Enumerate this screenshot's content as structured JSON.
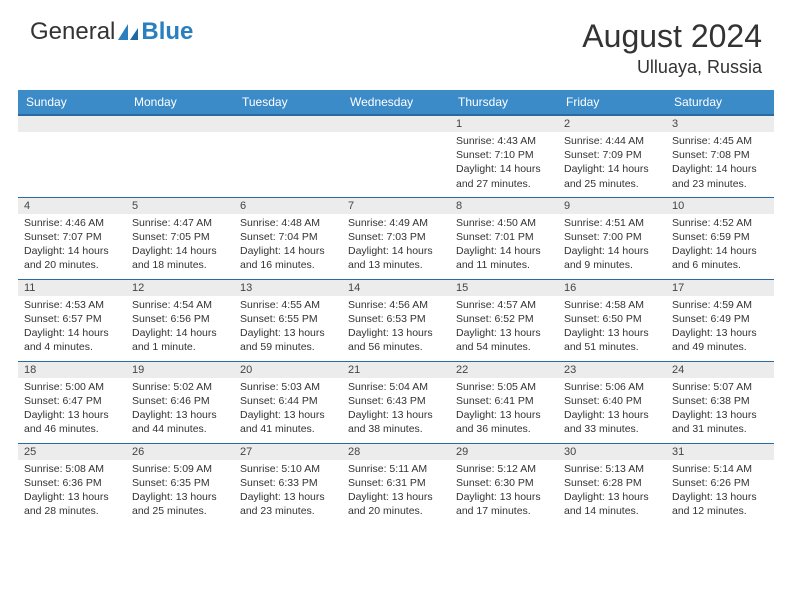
{
  "brand": {
    "part1": "General",
    "part2": "Blue"
  },
  "title": "August 2024",
  "location": "Ulluaya, Russia",
  "header_bg": "#3b8bc9",
  "header_text": "#ffffff",
  "border_color": "#2a6aa0",
  "daynum_bg": "#ececec",
  "weekdays": [
    "Sunday",
    "Monday",
    "Tuesday",
    "Wednesday",
    "Thursday",
    "Friday",
    "Saturday"
  ],
  "weeks": [
    [
      null,
      null,
      null,
      null,
      {
        "n": "1",
        "sr": "Sunrise: 4:43 AM",
        "ss": "Sunset: 7:10 PM",
        "dl": "Daylight: 14 hours and 27 minutes."
      },
      {
        "n": "2",
        "sr": "Sunrise: 4:44 AM",
        "ss": "Sunset: 7:09 PM",
        "dl": "Daylight: 14 hours and 25 minutes."
      },
      {
        "n": "3",
        "sr": "Sunrise: 4:45 AM",
        "ss": "Sunset: 7:08 PM",
        "dl": "Daylight: 14 hours and 23 minutes."
      }
    ],
    [
      {
        "n": "4",
        "sr": "Sunrise: 4:46 AM",
        "ss": "Sunset: 7:07 PM",
        "dl": "Daylight: 14 hours and 20 minutes."
      },
      {
        "n": "5",
        "sr": "Sunrise: 4:47 AM",
        "ss": "Sunset: 7:05 PM",
        "dl": "Daylight: 14 hours and 18 minutes."
      },
      {
        "n": "6",
        "sr": "Sunrise: 4:48 AM",
        "ss": "Sunset: 7:04 PM",
        "dl": "Daylight: 14 hours and 16 minutes."
      },
      {
        "n": "7",
        "sr": "Sunrise: 4:49 AM",
        "ss": "Sunset: 7:03 PM",
        "dl": "Daylight: 14 hours and 13 minutes."
      },
      {
        "n": "8",
        "sr": "Sunrise: 4:50 AM",
        "ss": "Sunset: 7:01 PM",
        "dl": "Daylight: 14 hours and 11 minutes."
      },
      {
        "n": "9",
        "sr": "Sunrise: 4:51 AM",
        "ss": "Sunset: 7:00 PM",
        "dl": "Daylight: 14 hours and 9 minutes."
      },
      {
        "n": "10",
        "sr": "Sunrise: 4:52 AM",
        "ss": "Sunset: 6:59 PM",
        "dl": "Daylight: 14 hours and 6 minutes."
      }
    ],
    [
      {
        "n": "11",
        "sr": "Sunrise: 4:53 AM",
        "ss": "Sunset: 6:57 PM",
        "dl": "Daylight: 14 hours and 4 minutes."
      },
      {
        "n": "12",
        "sr": "Sunrise: 4:54 AM",
        "ss": "Sunset: 6:56 PM",
        "dl": "Daylight: 14 hours and 1 minute."
      },
      {
        "n": "13",
        "sr": "Sunrise: 4:55 AM",
        "ss": "Sunset: 6:55 PM",
        "dl": "Daylight: 13 hours and 59 minutes."
      },
      {
        "n": "14",
        "sr": "Sunrise: 4:56 AM",
        "ss": "Sunset: 6:53 PM",
        "dl": "Daylight: 13 hours and 56 minutes."
      },
      {
        "n": "15",
        "sr": "Sunrise: 4:57 AM",
        "ss": "Sunset: 6:52 PM",
        "dl": "Daylight: 13 hours and 54 minutes."
      },
      {
        "n": "16",
        "sr": "Sunrise: 4:58 AM",
        "ss": "Sunset: 6:50 PM",
        "dl": "Daylight: 13 hours and 51 minutes."
      },
      {
        "n": "17",
        "sr": "Sunrise: 4:59 AM",
        "ss": "Sunset: 6:49 PM",
        "dl": "Daylight: 13 hours and 49 minutes."
      }
    ],
    [
      {
        "n": "18",
        "sr": "Sunrise: 5:00 AM",
        "ss": "Sunset: 6:47 PM",
        "dl": "Daylight: 13 hours and 46 minutes."
      },
      {
        "n": "19",
        "sr": "Sunrise: 5:02 AM",
        "ss": "Sunset: 6:46 PM",
        "dl": "Daylight: 13 hours and 44 minutes."
      },
      {
        "n": "20",
        "sr": "Sunrise: 5:03 AM",
        "ss": "Sunset: 6:44 PM",
        "dl": "Daylight: 13 hours and 41 minutes."
      },
      {
        "n": "21",
        "sr": "Sunrise: 5:04 AM",
        "ss": "Sunset: 6:43 PM",
        "dl": "Daylight: 13 hours and 38 minutes."
      },
      {
        "n": "22",
        "sr": "Sunrise: 5:05 AM",
        "ss": "Sunset: 6:41 PM",
        "dl": "Daylight: 13 hours and 36 minutes."
      },
      {
        "n": "23",
        "sr": "Sunrise: 5:06 AM",
        "ss": "Sunset: 6:40 PM",
        "dl": "Daylight: 13 hours and 33 minutes."
      },
      {
        "n": "24",
        "sr": "Sunrise: 5:07 AM",
        "ss": "Sunset: 6:38 PM",
        "dl": "Daylight: 13 hours and 31 minutes."
      }
    ],
    [
      {
        "n": "25",
        "sr": "Sunrise: 5:08 AM",
        "ss": "Sunset: 6:36 PM",
        "dl": "Daylight: 13 hours and 28 minutes."
      },
      {
        "n": "26",
        "sr": "Sunrise: 5:09 AM",
        "ss": "Sunset: 6:35 PM",
        "dl": "Daylight: 13 hours and 25 minutes."
      },
      {
        "n": "27",
        "sr": "Sunrise: 5:10 AM",
        "ss": "Sunset: 6:33 PM",
        "dl": "Daylight: 13 hours and 23 minutes."
      },
      {
        "n": "28",
        "sr": "Sunrise: 5:11 AM",
        "ss": "Sunset: 6:31 PM",
        "dl": "Daylight: 13 hours and 20 minutes."
      },
      {
        "n": "29",
        "sr": "Sunrise: 5:12 AM",
        "ss": "Sunset: 6:30 PM",
        "dl": "Daylight: 13 hours and 17 minutes."
      },
      {
        "n": "30",
        "sr": "Sunrise: 5:13 AM",
        "ss": "Sunset: 6:28 PM",
        "dl": "Daylight: 13 hours and 14 minutes."
      },
      {
        "n": "31",
        "sr": "Sunrise: 5:14 AM",
        "ss": "Sunset: 6:26 PM",
        "dl": "Daylight: 13 hours and 12 minutes."
      }
    ]
  ]
}
